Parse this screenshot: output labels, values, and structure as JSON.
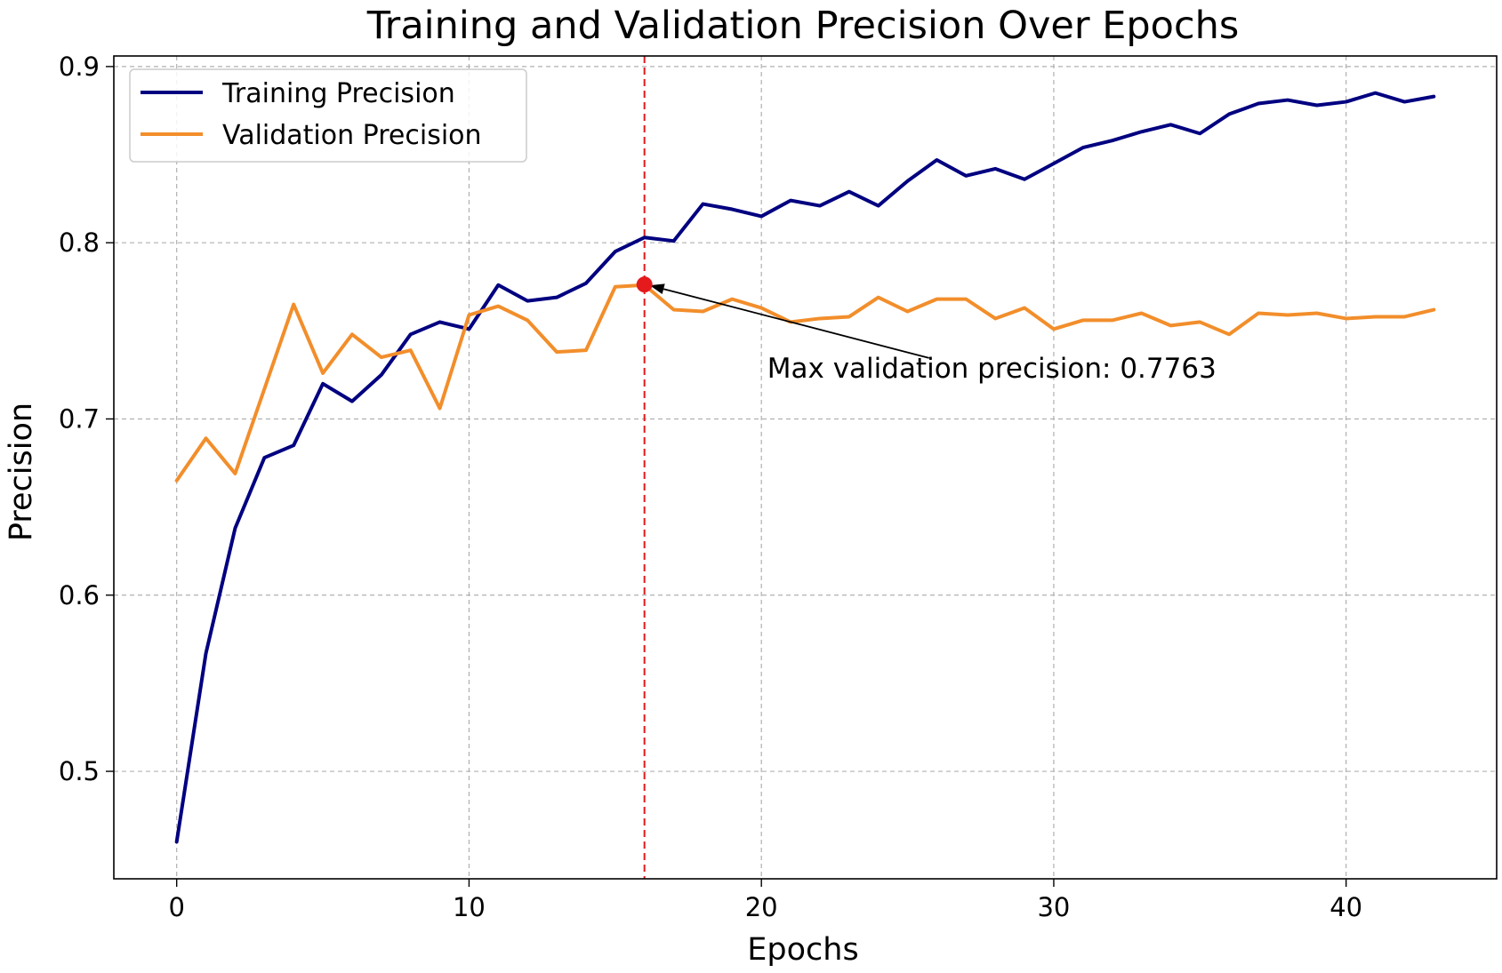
{
  "chart_data": {
    "type": "line",
    "title": "Training and Validation Precision Over Epochs",
    "xlabel": "Epochs",
    "ylabel": "Precision",
    "xlim": [
      -2.15,
      45.15
    ],
    "ylim": [
      0.439,
      0.906
    ],
    "xticks": [
      0,
      10,
      20,
      30,
      40
    ],
    "yticks": [
      0.5,
      0.6,
      0.7,
      0.8,
      0.9
    ],
    "xtick_labels": [
      "0",
      "10",
      "20",
      "30",
      "40"
    ],
    "ytick_labels": [
      "0.5",
      "0.6",
      "0.7",
      "0.8",
      "0.9"
    ],
    "grid": true,
    "legend_position": "upper-left",
    "x": [
      0,
      1,
      2,
      3,
      4,
      5,
      6,
      7,
      8,
      9,
      10,
      11,
      12,
      13,
      14,
      15,
      16,
      17,
      18,
      19,
      20,
      21,
      22,
      23,
      24,
      25,
      26,
      27,
      28,
      29,
      30,
      31,
      32,
      33,
      34,
      35,
      36,
      37,
      38,
      39,
      40,
      41,
      42,
      43
    ],
    "series": [
      {
        "name": "Training Precision",
        "color": "#000080",
        "values": [
          0.46,
          0.567,
          0.638,
          0.678,
          0.685,
          0.72,
          0.71,
          0.725,
          0.748,
          0.755,
          0.751,
          0.776,
          0.767,
          0.769,
          0.777,
          0.795,
          0.803,
          0.801,
          0.822,
          0.819,
          0.815,
          0.824,
          0.821,
          0.829,
          0.821,
          0.835,
          0.847,
          0.838,
          0.842,
          0.836,
          0.845,
          0.854,
          0.858,
          0.863,
          0.867,
          0.862,
          0.873,
          0.879,
          0.881,
          0.878,
          0.88,
          0.885,
          0.88,
          0.883
        ]
      },
      {
        "name": "Validation Precision",
        "color": "#f28e2b",
        "values": [
          0.665,
          0.689,
          0.669,
          0.717,
          0.765,
          0.726,
          0.748,
          0.735,
          0.739,
          0.706,
          0.759,
          0.764,
          0.756,
          0.738,
          0.739,
          0.775,
          0.776,
          0.762,
          0.761,
          0.768,
          0.763,
          0.755,
          0.757,
          0.758,
          0.769,
          0.761,
          0.768,
          0.768,
          0.757,
          0.763,
          0.751,
          0.756,
          0.756,
          0.76,
          0.753,
          0.755,
          0.748,
          0.76,
          0.759,
          0.76,
          0.757,
          0.758,
          0.758,
          0.762
        ]
      }
    ],
    "max_marker": {
      "epoch": 16,
      "value": 0.7763,
      "line_color": "#e41a1c",
      "marker_color": "#e41a1c"
    },
    "annotation": {
      "text": "Max validation precision: 0.7763",
      "color": "#e41a1c",
      "points_to_epoch": 16,
      "points_to_value": 0.7763,
      "text_epoch": 20.2,
      "text_value": 0.7235
    }
  }
}
